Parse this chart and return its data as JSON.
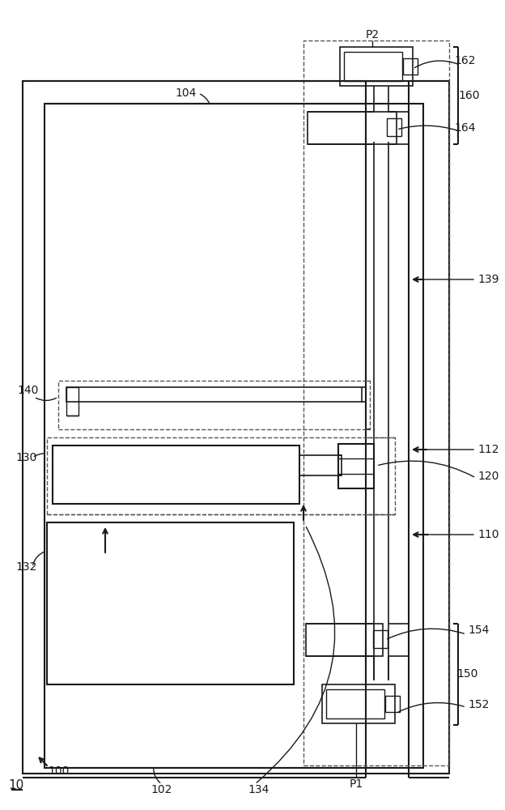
{
  "bg_color": "#ffffff",
  "lc": "#1a1a1a",
  "dc": "#555555",
  "figsize": [
    6.24,
    10.0
  ],
  "dpi": 100
}
